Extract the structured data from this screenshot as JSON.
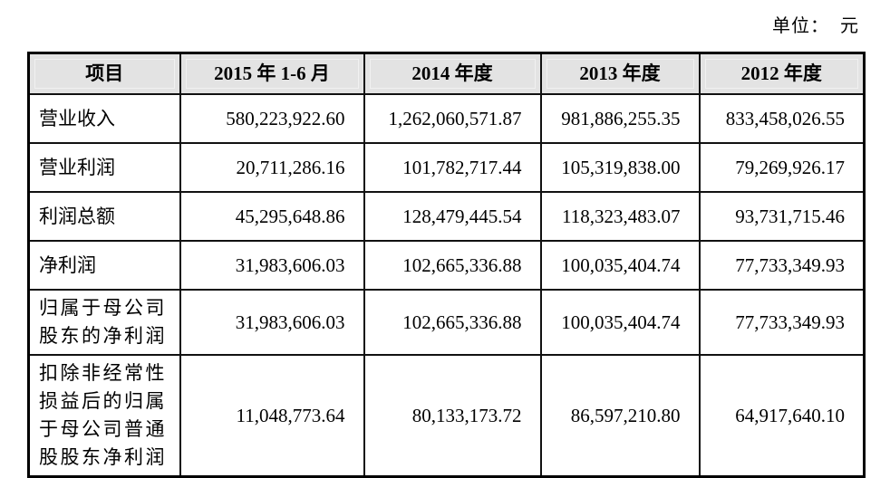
{
  "page": {
    "unit_label": "单位：  元"
  },
  "table": {
    "columns": [
      "项目",
      "2015 年 1-6 月",
      "2014 年度",
      "2013 年度",
      "2012 年度"
    ],
    "rows": [
      {
        "label": "营业收入",
        "values": [
          "580,223,922.60",
          "1,262,060,571.87",
          "981,886,255.35",
          "833,458,026.55"
        ]
      },
      {
        "label": "营业利润",
        "values": [
          "20,711,286.16",
          "101,782,717.44",
          "105,319,838.00",
          "79,269,926.17"
        ]
      },
      {
        "label": "利润总额",
        "values": [
          "45,295,648.86",
          "128,479,445.54",
          "118,323,483.07",
          "93,731,715.46"
        ]
      },
      {
        "label": "净利润",
        "values": [
          "31,983,606.03",
          "102,665,336.88",
          "100,035,404.74",
          "77,733,349.93"
        ]
      },
      {
        "label": "归属于母公司股东的净利润",
        "values": [
          "31,983,606.03",
          "102,665,336.88",
          "100,035,404.74",
          "77,733,349.93"
        ]
      },
      {
        "label": "扣除非经常性损益后的归属于母公司普通股股东净利润",
        "values": [
          "11,048,773.64",
          "80,133,173.72",
          "86,597,210.80",
          "64,917,640.10"
        ]
      }
    ]
  }
}
